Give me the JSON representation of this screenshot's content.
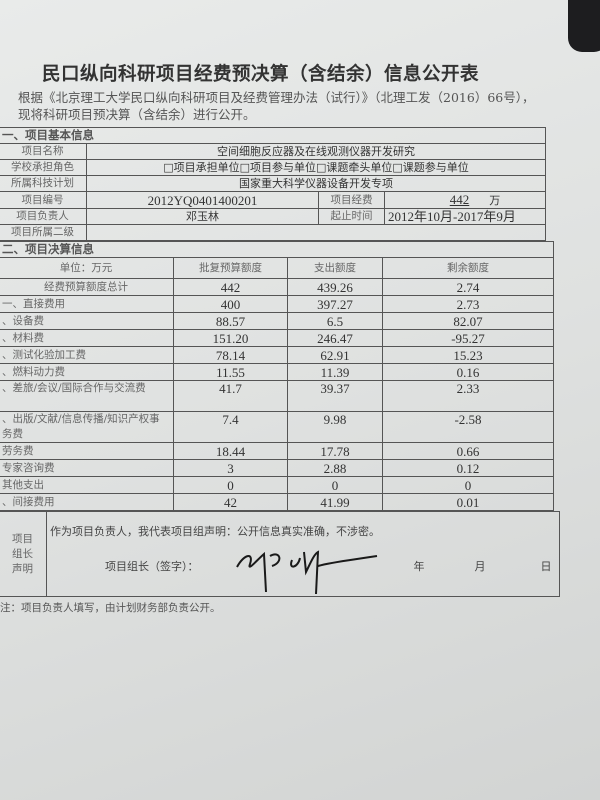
{
  "title": "民口纵向科研项目经费预决算（含结余）信息公开表",
  "intro": "根据《北京理工大学民口纵向科研项目及经费管理办法（试行）》（北理工发（2016）66号），现将科研项目预决算（含结余）进行公开。",
  "basic": {
    "section": "一、项目基本信息",
    "name_label": "项目名称",
    "name": "空间细胞反应器及在线观测仪器开发研究",
    "role_label": "学校承担角色",
    "role": "□项目承担单位□项目参与单位□课题牵头单位□课题参与单位",
    "plan_label": "所属科技计划",
    "plan": "国家重大科学仪器设备开发专项",
    "code_label": "项目编号",
    "code": "2012YQ0401400201",
    "funds_label": "项目经费",
    "funds": "442",
    "funds_unit": "万",
    "leader_label": "项目负责人",
    "leader": "邓玉林",
    "period_label": "起止时间",
    "period": "2012年10月-2017年9月",
    "level_label": "项目所属二级",
    "level": ""
  },
  "budget": {
    "section": "二、项目决算信息",
    "headers": [
      "单位：万元",
      "批复预算额度",
      "支出额度",
      "剩余额度"
    ],
    "rows": [
      [
        "经费预算额度总计",
        "442",
        "439.26",
        "2.74"
      ],
      [
        "一、直接费用",
        "400",
        "397.27",
        "2.73"
      ],
      [
        "、设备费",
        "88.57",
        "6.5",
        "82.07"
      ],
      [
        "、材料费",
        "151.20",
        "246.47",
        "-95.27"
      ],
      [
        "、测试化验加工费",
        "78.14",
        "62.91",
        "15.23"
      ],
      [
        "、燃料动力费",
        "11.55",
        "11.39",
        "0.16"
      ],
      [
        "、差旅/会议/国际合作与交流费",
        "41.7",
        "39.37",
        "2.33"
      ],
      [
        "、出版/文献/信息传播/知识产权事务费",
        "7.4",
        "9.98",
        "-2.58"
      ],
      [
        "劳务费",
        "18.44",
        "17.78",
        "0.66"
      ],
      [
        "专家咨询费",
        "3",
        "2.88",
        "0.12"
      ],
      [
        "其他支出",
        "0",
        "0",
        "0"
      ],
      [
        "、间接费用",
        "42",
        "41.99",
        "0.01"
      ]
    ]
  },
  "declaration": {
    "label": "项目组长声明",
    "text": "作为项目负责人，我代表项目组声明：公开信息真实准确，不涉密。",
    "sign_label": "项目组长（签字）：",
    "year": "年",
    "month": "月",
    "day": "日",
    "signature": "邓玉林"
  },
  "note": "注：项目负责人填写，由计划财务部负责公开。"
}
